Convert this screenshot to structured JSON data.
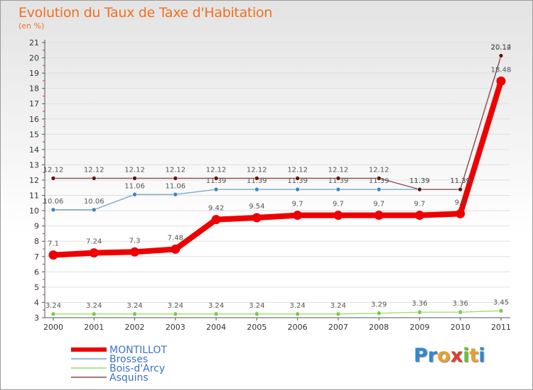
{
  "header": {
    "title": "Evolution du Taux de Taxe d'Habitation",
    "unit": "(en %)"
  },
  "logo": {
    "text": "Proxiti",
    "letter_colors": [
      "#2e88d0",
      "#2e88d0",
      "#e9a12a",
      "#d93f2a",
      "#6cbf3a",
      "#e9a12a",
      "#2e88d0"
    ]
  },
  "chart_data": {
    "type": "line",
    "title": "Evolution du Taux de Taxe d'Habitation",
    "ylabel": "(en %)",
    "xlabel": "",
    "categories": [
      "2000",
      "2001",
      "2002",
      "2003",
      "2004",
      "2005",
      "2006",
      "2007",
      "2008",
      "2009",
      "2010",
      "2011"
    ],
    "ylim": [
      3,
      21
    ],
    "yticks": [
      3,
      4,
      5,
      6,
      7,
      8,
      9,
      10,
      11,
      12,
      13,
      14,
      15,
      16,
      17,
      18,
      19,
      20,
      21
    ],
    "grid": true,
    "legend_position": "bottom-left",
    "series": [
      {
        "name": "MONTILLOT",
        "color": "#ee0000",
        "marker_color": "#ee0000",
        "emphasis": true,
        "values": [
          7.1,
          7.24,
          7.3,
          7.48,
          9.42,
          9.54,
          9.7,
          9.7,
          9.7,
          9.7,
          9.8,
          18.48
        ],
        "labels": [
          "7.1",
          "7.24",
          "7.3",
          "7.48",
          "9.42",
          "9.54",
          "9.7",
          "9.7",
          "9.7",
          "9.7",
          "9.8",
          "18.48"
        ]
      },
      {
        "name": "Brosses",
        "color": "#6e9fc9",
        "marker_color": "#3d85c6",
        "emphasis": false,
        "values": [
          10.06,
          10.06,
          11.06,
          11.06,
          11.39,
          11.39,
          11.39,
          11.39,
          11.39,
          11.39,
          11.39,
          20.12
        ],
        "labels": [
          "10.06",
          "10.06",
          "11.06",
          "11.06",
          "11.39",
          "11.39",
          "11.39",
          "11.39",
          "11.39",
          "11.39",
          "11.39",
          "20.12"
        ]
      },
      {
        "name": "Bois-d'Arcy",
        "color": "#99dd66",
        "marker_color": "#77cc44",
        "emphasis": false,
        "values": [
          3.24,
          3.24,
          3.24,
          3.24,
          3.24,
          3.24,
          3.24,
          3.24,
          3.29,
          3.36,
          3.36,
          3.45
        ],
        "labels": [
          "3.24",
          "3.24",
          "3.24",
          "3.24",
          "3.24",
          "3.24",
          "3.24",
          "3.24",
          "3.29",
          "3.36",
          "3.36",
          "3.45"
        ]
      },
      {
        "name": "Asquins",
        "color": "#8b4a4a",
        "marker_color": "#6a1010",
        "emphasis": false,
        "values": [
          12.12,
          12.12,
          12.12,
          12.12,
          12.12,
          12.12,
          12.12,
          12.12,
          12.12,
          11.39,
          11.39,
          20.14
        ],
        "labels": [
          "12.12",
          "12.12",
          "12.12",
          "12.12",
          "12.12",
          "12.12",
          "12.12",
          "12.12",
          "12.12",
          "11.39",
          "11.39",
          "20.14"
        ]
      }
    ]
  }
}
